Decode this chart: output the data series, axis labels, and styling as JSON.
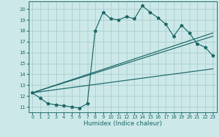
{
  "xlabel": "Humidex (Indice chaleur)",
  "bg_color": "#cce8e8",
  "grid_color": "#aacccc",
  "line_color": "#1a6666",
  "xlim": [
    -0.5,
    23.5
  ],
  "ylim": [
    10.5,
    20.7
  ],
  "xticks": [
    0,
    1,
    2,
    3,
    4,
    5,
    6,
    7,
    8,
    9,
    10,
    11,
    12,
    13,
    14,
    15,
    16,
    17,
    18,
    19,
    20,
    21,
    22,
    23
  ],
  "yticks": [
    11,
    12,
    13,
    14,
    15,
    16,
    17,
    18,
    19,
    20
  ],
  "series1_x": [
    0,
    1,
    2,
    3,
    4,
    5,
    6,
    7,
    8,
    9,
    10,
    11,
    12,
    13,
    14,
    15,
    16,
    17,
    18,
    19,
    20,
    21,
    22,
    23
  ],
  "series1_y": [
    12.3,
    11.8,
    11.3,
    11.2,
    11.1,
    11.0,
    10.9,
    11.3,
    18.0,
    19.7,
    19.1,
    19.0,
    19.3,
    19.1,
    20.3,
    19.7,
    19.2,
    18.6,
    17.5,
    18.5,
    17.8,
    16.8,
    16.5,
    15.7
  ],
  "line1_x": [
    0,
    23
  ],
  "line1_y": [
    12.3,
    14.5
  ],
  "line2_x": [
    0,
    23
  ],
  "line2_y": [
    12.3,
    17.5
  ],
  "line3_x": [
    0,
    23
  ],
  "line3_y": [
    12.3,
    17.8
  ],
  "marker": "*",
  "markersize": 3.5,
  "linewidth": 0.9,
  "tick_fontsize": 5.0,
  "xlabel_fontsize": 6.5
}
